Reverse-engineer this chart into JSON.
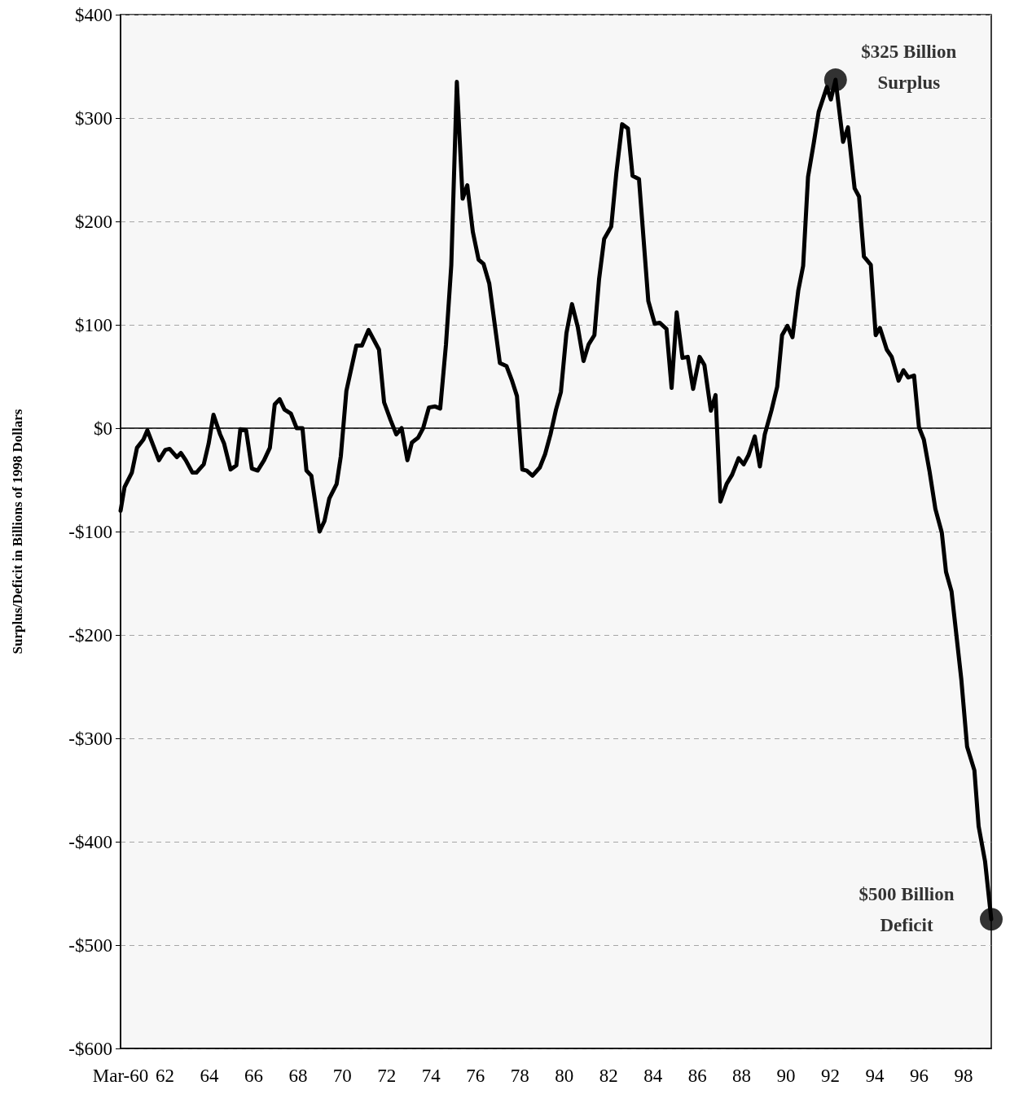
{
  "chart_data": {
    "type": "line",
    "ylabel": "Surplus/Deficit in Billions of 1998 Dollars",
    "xlim": [
      1960,
      1999.25
    ],
    "xticks": [
      {
        "value": 1960,
        "label": "Mar-60"
      },
      {
        "value": 1962,
        "label": "62"
      },
      {
        "value": 1964,
        "label": "64"
      },
      {
        "value": 1966,
        "label": "66"
      },
      {
        "value": 1968,
        "label": "68"
      },
      {
        "value": 1970,
        "label": "70"
      },
      {
        "value": 1972,
        "label": "72"
      },
      {
        "value": 1974,
        "label": "74"
      },
      {
        "value": 1976,
        "label": "76"
      },
      {
        "value": 1978,
        "label": "78"
      },
      {
        "value": 1980,
        "label": "80"
      },
      {
        "value": 1982,
        "label": "82"
      },
      {
        "value": 1984,
        "label": "84"
      },
      {
        "value": 1986,
        "label": "86"
      },
      {
        "value": 1988,
        "label": "88"
      },
      {
        "value": 1990,
        "label": "90"
      },
      {
        "value": 1992,
        "label": "92"
      },
      {
        "value": 1994,
        "label": "94"
      },
      {
        "value": 1996,
        "label": "96"
      },
      {
        "value": 1998,
        "label": "98"
      }
    ],
    "ylim": [
      -600,
      400
    ],
    "yticks": [
      {
        "value": -600,
        "label": "-$600"
      },
      {
        "value": -500,
        "label": "-$500"
      },
      {
        "value": -400,
        "label": "-$400"
      },
      {
        "value": -300,
        "label": "-$300"
      },
      {
        "value": -200,
        "label": "-$200"
      },
      {
        "value": -100,
        "label": "-$100"
      },
      {
        "value": 0,
        "label": "$0"
      },
      {
        "value": 100,
        "label": "$100"
      },
      {
        "value": 200,
        "label": "$200"
      },
      {
        "value": 300,
        "label": "$300"
      },
      {
        "value": 400,
        "label": "$400"
      }
    ],
    "grid": "y",
    "marker": "none",
    "line_style": "solid",
    "ref_lines": [
      {
        "axis": "y",
        "value": 0,
        "color": "#000000",
        "line_style": "solid"
      }
    ],
    "annotations": [
      {
        "text": "$325 Billion\nSurplus",
        "x": 1992.23,
        "y": 337
      },
      {
        "text": "$500 Billion\nDeficit",
        "x": 1999.25,
        "y": -475
      }
    ],
    "series": [
      {
        "color": "#000000",
        "x": [
          1960,
          1960.18,
          1960.51,
          1960.74,
          1961.03,
          1961.21,
          1961.73,
          1962.02,
          1962.21,
          1962.54,
          1962.72,
          1962.94,
          1963.24,
          1963.42,
          1963.75,
          1963.97,
          1964.19,
          1964.49,
          1964.67,
          1964.96,
          1965.22,
          1965.4,
          1965.66,
          1965.92,
          1966.18,
          1966.47,
          1966.73,
          1966.95,
          1967.17,
          1967.39,
          1967.68,
          1967.94,
          1968.2,
          1968.38,
          1968.6,
          1968.97,
          1969.19,
          1969.41,
          1969.74,
          1969.93,
          1970.18,
          1970.63,
          1970.88,
          1971.18,
          1971.65,
          1971.88,
          1972.17,
          1972.43,
          1972.67,
          1972.93,
          1973.13,
          1973.42,
          1973.64,
          1973.9,
          1974.18,
          1974.41,
          1974.67,
          1974.91,
          1975.16,
          1975.42,
          1975.63,
          1975.88,
          1976.14,
          1976.36,
          1976.62,
          1977.1,
          1977.4,
          1977.63,
          1977.87,
          1978.11,
          1978.31,
          1978.57,
          1978.9,
          1979.14,
          1979.38,
          1979.63,
          1979.85,
          1980.1,
          1980.35,
          1980.61,
          1980.87,
          1981.1,
          1981.36,
          1981.57,
          1981.8,
          1982.12,
          1982.35,
          1982.61,
          1982.87,
          1983.08,
          1983.37,
          1983.79,
          1984.08,
          1984.3,
          1984.61,
          1984.84,
          1985.07,
          1985.33,
          1985.57,
          1985.81,
          1986.1,
          1986.32,
          1986.61,
          1986.82,
          1987.04,
          1987.32,
          1987.57,
          1987.86,
          1988.09,
          1988.31,
          1988.59,
          1988.82,
          1989.04,
          1989.34,
          1989.6,
          1989.82,
          1990.06,
          1990.29,
          1990.55,
          1990.77,
          1990.99,
          1991.25,
          1991.47,
          1991.84,
          1992.02,
          1992.23,
          1992.57,
          1992.79,
          1993.09,
          1993.29,
          1993.51,
          1993.82,
          1994.04,
          1994.23,
          1994.54,
          1994.76,
          1995.07,
          1995.29,
          1995.51,
          1995.77,
          1995.99,
          1996.21,
          1996.47,
          1996.73,
          1997.02,
          1997.21,
          1997.46,
          1997.9,
          1998.16,
          1998.49,
          1998.68,
          1998.97,
          1999.25
        ],
        "values": [
          -80,
          -57,
          -43,
          -19,
          -11,
          -2,
          -31,
          -21,
          -20,
          -28,
          -24,
          -31,
          -43,
          -43,
          -35,
          -15,
          13,
          -6,
          -15,
          -40,
          -36,
          -1,
          -2,
          -39,
          -41,
          -31,
          -19,
          23,
          28,
          18,
          14,
          0,
          0,
          -41,
          -46,
          -100,
          -90,
          -68,
          -54,
          -27,
          36,
          80,
          80,
          95,
          76,
          25,
          8,
          -6,
          0,
          -31,
          -14,
          -9,
          0,
          20,
          21,
          19,
          81,
          158,
          335,
          222,
          235,
          190,
          163,
          159,
          140,
          63,
          60,
          47,
          31,
          -40,
          -41,
          -46,
          -38,
          -25,
          -6,
          18,
          35,
          92,
          120,
          98,
          65,
          81,
          90,
          144,
          183,
          195,
          247,
          294,
          290,
          244,
          241,
          123,
          101,
          102,
          96,
          39,
          112,
          68,
          69,
          38,
          69,
          61,
          17,
          32,
          -71,
          -54,
          -45,
          -29,
          -35,
          -26,
          -8,
          -37,
          -6,
          17,
          40,
          90,
          99,
          88,
          133,
          157,
          243,
          276,
          306,
          330,
          318,
          337,
          277,
          291,
          232,
          224,
          166,
          158,
          90,
          97,
          76,
          69,
          46,
          56,
          49,
          51,
          1,
          -11,
          -42,
          -78,
          -101,
          -139,
          -158,
          -243,
          -308,
          -331,
          -385,
          -419,
          -475
        ]
      }
    ]
  }
}
